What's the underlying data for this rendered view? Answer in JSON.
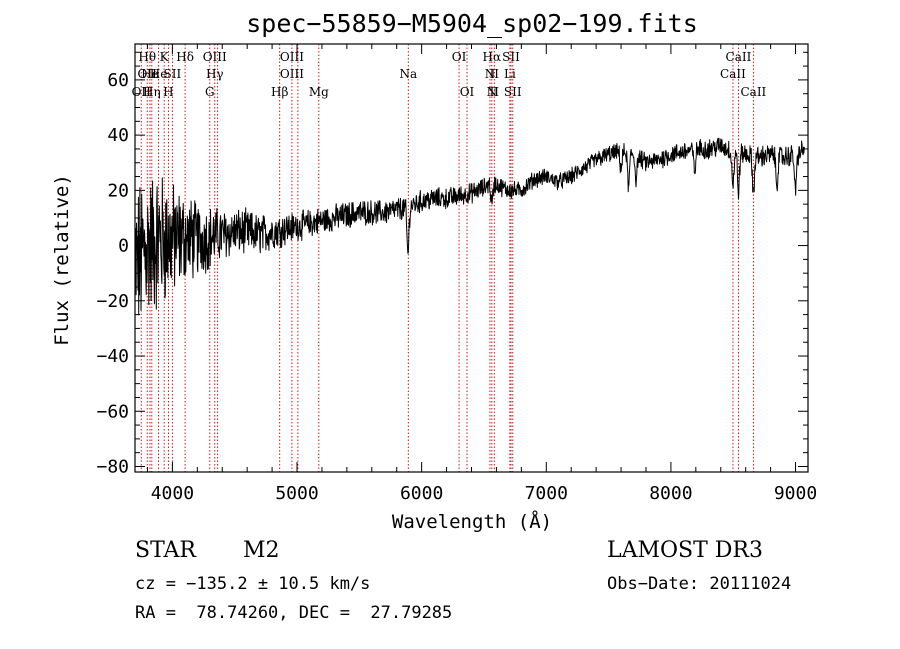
{
  "chart_data": {
    "type": "line",
    "title": "spec−55859−M5904_sp02−199.fits",
    "xlabel": "Wavelength (Å)",
    "ylabel": "Flux (relative)",
    "xlim": [
      3700,
      9100
    ],
    "ylim": [
      -82,
      73
    ],
    "x_ticks": [
      4000,
      5000,
      6000,
      7000,
      8000,
      9000
    ],
    "x_tick_labels": [
      "4000",
      "5000",
      "6000",
      "7000",
      "8000",
      "9000"
    ],
    "y_ticks": [
      -80,
      -60,
      -40,
      -20,
      0,
      20,
      40,
      60
    ],
    "y_tick_labels": [
      "−80",
      "−60",
      "−40",
      "−20",
      "0",
      "20",
      "40",
      "60"
    ],
    "series": [
      {
        "name": "flux",
        "noise": [
          {
            "x": 3700,
            "amp": 25
          },
          {
            "x": 3900,
            "amp": 22
          },
          {
            "x": 4100,
            "amp": 14
          },
          {
            "x": 4400,
            "amp": 8
          },
          {
            "x": 5000,
            "amp": 4.5
          },
          {
            "x": 6000,
            "amp": 3.5
          },
          {
            "x": 7000,
            "amp": 2.5
          },
          {
            "x": 8000,
            "amp": 3
          },
          {
            "x": 9100,
            "amp": 3.5
          }
        ],
        "points": [
          [
            3700,
            -8
          ],
          [
            3800,
            0
          ],
          [
            3900,
            2
          ],
          [
            4000,
            2
          ],
          [
            4100,
            3
          ],
          [
            4200,
            2
          ],
          [
            4300,
            3
          ],
          [
            4400,
            4
          ],
          [
            4500,
            5
          ],
          [
            4600,
            5
          ],
          [
            4700,
            4
          ],
          [
            4800,
            5
          ],
          [
            4900,
            6
          ],
          [
            5000,
            7
          ],
          [
            5100,
            8
          ],
          [
            5200,
            9
          ],
          [
            5300,
            10
          ],
          [
            5400,
            11
          ],
          [
            5500,
            12
          ],
          [
            5600,
            12
          ],
          [
            5700,
            12
          ],
          [
            5800,
            13
          ],
          [
            5900,
            14
          ],
          [
            6000,
            16
          ],
          [
            6100,
            17
          ],
          [
            6200,
            17
          ],
          [
            6300,
            18
          ],
          [
            6400,
            19
          ],
          [
            6500,
            21
          ],
          [
            6560,
            23
          ],
          [
            6600,
            22
          ],
          [
            6700,
            20
          ],
          [
            6800,
            20
          ],
          [
            6900,
            24
          ],
          [
            7000,
            25
          ],
          [
            7100,
            23
          ],
          [
            7200,
            25
          ],
          [
            7300,
            28
          ],
          [
            7400,
            31
          ],
          [
            7500,
            33
          ],
          [
            7600,
            34
          ],
          [
            7700,
            33
          ],
          [
            7800,
            30
          ],
          [
            7900,
            31
          ],
          [
            8000,
            33
          ],
          [
            8100,
            34
          ],
          [
            8200,
            35
          ],
          [
            8300,
            35
          ],
          [
            8400,
            36
          ],
          [
            8500,
            34
          ],
          [
            8600,
            33
          ],
          [
            8700,
            32
          ],
          [
            8800,
            33
          ],
          [
            8900,
            32
          ],
          [
            9000,
            33
          ],
          [
            9050,
            34
          ],
          [
            9100,
            35
          ]
        ],
        "absorption_dips": [
          {
            "x": 5890,
            "depth": 17
          },
          {
            "x": 6563,
            "depth": 8
          },
          {
            "x": 7600,
            "depth": 6
          },
          {
            "x": 7660,
            "depth": 12
          },
          {
            "x": 7720,
            "depth": 8
          },
          {
            "x": 8190,
            "depth": 8
          },
          {
            "x": 8498,
            "depth": 12
          },
          {
            "x": 8542,
            "depth": 14
          },
          {
            "x": 8662,
            "depth": 13
          },
          {
            "x": 8850,
            "depth": 10
          },
          {
            "x": 9000,
            "depth": 14
          }
        ]
      }
    ],
    "line_markers": [
      {
        "x": 3750,
        "labels": [
          {
            "text": "OII",
            "row": 3
          }
        ]
      },
      {
        "x": 3798,
        "labels": [
          {
            "text": "Hθ",
            "row": 1
          },
          {
            "text": "OII",
            "row": 2
          }
        ]
      },
      {
        "x": 3820,
        "labels": [
          {
            "text": "He",
            "row": 2
          }
        ]
      },
      {
        "x": 3835,
        "labels": [
          {
            "text": "Hη",
            "row": 3
          }
        ]
      },
      {
        "x": 3889,
        "labels": [
          {
            "text": "He",
            "row": 2
          }
        ]
      },
      {
        "x": 3934,
        "labels": [
          {
            "text": "K",
            "row": 1
          }
        ]
      },
      {
        "x": 3968,
        "labels": [
          {
            "text": "H",
            "row": 3
          }
        ]
      },
      {
        "x": 4000,
        "labels": [
          {
            "text": "SII",
            "row": 2
          }
        ]
      },
      {
        "x": 4102,
        "labels": [
          {
            "text": "Hδ",
            "row": 1
          }
        ]
      },
      {
        "x": 4300,
        "labels": [
          {
            "text": "G",
            "row": 3
          }
        ]
      },
      {
        "x": 4340,
        "labels": [
          {
            "text": "OIII",
            "row": 1
          },
          {
            "text": "Hγ",
            "row": 2
          }
        ]
      },
      {
        "x": 4363,
        "labels": []
      },
      {
        "x": 4861,
        "labels": [
          {
            "text": "Hβ",
            "row": 3
          }
        ]
      },
      {
        "x": 4959,
        "labels": [
          {
            "text": "OIII",
            "row": 1
          },
          {
            "text": "OIII",
            "row": 2
          }
        ]
      },
      {
        "x": 5007,
        "labels": []
      },
      {
        "x": 5175,
        "labels": [
          {
            "text": "Mg",
            "row": 3
          }
        ]
      },
      {
        "x": 5893,
        "labels": [
          {
            "text": "Na",
            "row": 2
          }
        ]
      },
      {
        "x": 6300,
        "labels": [
          {
            "text": "OI",
            "row": 1
          }
        ]
      },
      {
        "x": 6364,
        "labels": [
          {
            "text": "OI",
            "row": 3
          }
        ]
      },
      {
        "x": 6548,
        "labels": [
          {
            "text": "N",
            "row": 2
          }
        ]
      },
      {
        "x": 6563,
        "labels": [
          {
            "text": "Hα",
            "row": 1
          },
          {
            "text": "N",
            "row": 3
          }
        ]
      },
      {
        "x": 6583,
        "labels": [
          {
            "text": "II",
            "row": 2
          },
          {
            "text": "II",
            "row": 3
          }
        ]
      },
      {
        "x": 6708,
        "labels": [
          {
            "text": "Li",
            "row": 2
          }
        ]
      },
      {
        "x": 6717,
        "labels": [
          {
            "text": "SII",
            "row": 1
          }
        ]
      },
      {
        "x": 6731,
        "labels": [
          {
            "text": "SII",
            "row": 3
          }
        ]
      },
      {
        "x": 8498,
        "labels": [
          {
            "text": "CaII",
            "row": 2
          }
        ]
      },
      {
        "x": 8542,
        "labels": [
          {
            "text": "CaII",
            "row": 1
          }
        ]
      },
      {
        "x": 8662,
        "labels": [
          {
            "text": "CaII",
            "row": 3
          }
        ]
      }
    ]
  },
  "info": {
    "object_class": "STAR",
    "subclass": "M2",
    "survey": "LAMOST DR3",
    "cz": "cz = −135.2 ± 10.5 km/s",
    "obs_date": "Obs−Date: 20111024",
    "coords": "RA =  78.74260, DEC =  27.79285"
  },
  "colors": {
    "axis": "#000000",
    "spectrum": "#000000",
    "marker_line": "#cc0000",
    "background": "#ffffff"
  }
}
